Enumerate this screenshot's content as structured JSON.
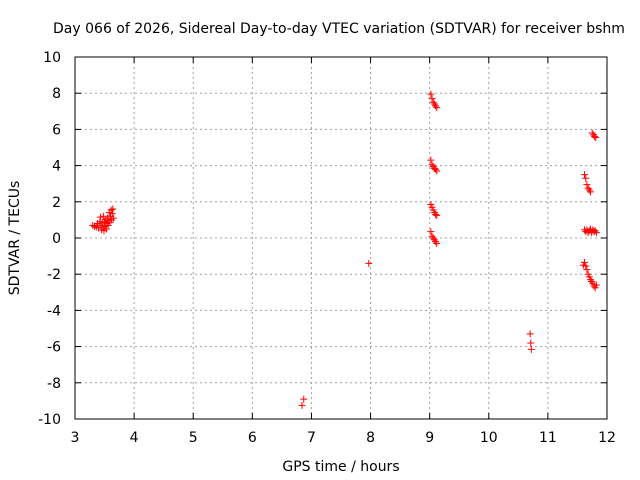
{
  "chart_data": {
    "type": "scatter",
    "title": "Day 066 of 2026, Sidereal Day-to-day VTEC variation (SDTVAR) for receiver bshm",
    "xlabel": "GPS time / hours",
    "ylabel": "SDTVAR / TECUs",
    "xlim": [
      3,
      12
    ],
    "ylim": [
      -10,
      10
    ],
    "xticks": [
      "3",
      "4",
      "5",
      "6",
      "7",
      "8",
      "9",
      "10",
      "11",
      "12"
    ],
    "yticks": [
      "-10",
      "-8",
      "-6",
      "-4",
      "-2",
      "0",
      "2",
      "4",
      "6",
      "8",
      "10"
    ],
    "grid": true,
    "marker": "+",
    "colors": {
      "points": "#ff0000",
      "grid": "#a0a0a0",
      "axis": "#000000"
    },
    "series": [
      {
        "name": "SDTVAR",
        "points": [
          [
            3.3,
            0.7
          ],
          [
            3.33,
            0.65
          ],
          [
            3.36,
            0.6
          ],
          [
            3.38,
            0.8
          ],
          [
            3.4,
            0.55
          ],
          [
            3.42,
            0.9
          ],
          [
            3.43,
            1.15
          ],
          [
            3.44,
            0.7
          ],
          [
            3.45,
            0.45
          ],
          [
            3.46,
            0.85
          ],
          [
            3.47,
            0.6
          ],
          [
            3.48,
            1.2
          ],
          [
            3.49,
            0.4
          ],
          [
            3.5,
            0.9
          ],
          [
            3.51,
            0.65
          ],
          [
            3.52,
            1.0
          ],
          [
            3.53,
            0.5
          ],
          [
            3.54,
            0.8
          ],
          [
            3.55,
            1.1
          ],
          [
            3.56,
            0.7
          ],
          [
            3.57,
            0.95
          ],
          [
            3.58,
            1.4
          ],
          [
            3.59,
            0.85
          ],
          [
            3.6,
            1.2
          ],
          [
            3.61,
            1.55
          ],
          [
            3.62,
            1.0
          ],
          [
            3.63,
            1.35
          ],
          [
            3.64,
            1.6
          ],
          [
            3.65,
            1.1
          ],
          [
            6.84,
            -9.25
          ],
          [
            6.87,
            -8.9
          ],
          [
            7.97,
            -1.4
          ],
          [
            9.02,
            7.95
          ],
          [
            9.04,
            7.7
          ],
          [
            9.06,
            7.5
          ],
          [
            9.08,
            7.4
          ],
          [
            9.1,
            7.3
          ],
          [
            9.12,
            7.2
          ],
          [
            9.02,
            4.3
          ],
          [
            9.04,
            4.05
          ],
          [
            9.06,
            3.95
          ],
          [
            9.08,
            3.85
          ],
          [
            9.1,
            3.8
          ],
          [
            9.12,
            3.7
          ],
          [
            9.02,
            1.85
          ],
          [
            9.04,
            1.7
          ],
          [
            9.06,
            1.55
          ],
          [
            9.08,
            1.4
          ],
          [
            9.1,
            1.3
          ],
          [
            9.12,
            1.25
          ],
          [
            9.02,
            0.35
          ],
          [
            9.04,
            0.1
          ],
          [
            9.06,
            0.0
          ],
          [
            9.08,
            -0.1
          ],
          [
            9.1,
            -0.2
          ],
          [
            9.12,
            -0.3
          ],
          [
            10.7,
            -5.3
          ],
          [
            10.71,
            -5.8
          ],
          [
            10.72,
            -6.15
          ],
          [
            11.62,
            3.5
          ],
          [
            11.64,
            3.3
          ],
          [
            11.66,
            2.95
          ],
          [
            11.68,
            2.75
          ],
          [
            11.7,
            2.65
          ],
          [
            11.72,
            2.55
          ],
          [
            11.6,
            -1.5
          ],
          [
            11.62,
            -1.35
          ],
          [
            11.64,
            -1.55
          ],
          [
            11.66,
            -1.75
          ],
          [
            11.68,
            -2.0
          ],
          [
            11.7,
            -2.15
          ],
          [
            11.72,
            -2.3
          ],
          [
            11.74,
            -2.4
          ],
          [
            11.76,
            -2.5
          ],
          [
            11.78,
            -2.65
          ],
          [
            11.8,
            -2.75
          ],
          [
            11.82,
            -2.6
          ],
          [
            11.62,
            0.45
          ],
          [
            11.64,
            0.35
          ],
          [
            11.66,
            0.45
          ],
          [
            11.68,
            0.3
          ],
          [
            11.7,
            0.4
          ],
          [
            11.72,
            0.5
          ],
          [
            11.74,
            0.3
          ],
          [
            11.76,
            0.45
          ],
          [
            11.78,
            0.35
          ],
          [
            11.8,
            0.4
          ],
          [
            11.82,
            0.3
          ],
          [
            11.75,
            5.8
          ],
          [
            11.77,
            5.7
          ],
          [
            11.79,
            5.6
          ],
          [
            11.81,
            5.55
          ]
        ]
      }
    ]
  }
}
